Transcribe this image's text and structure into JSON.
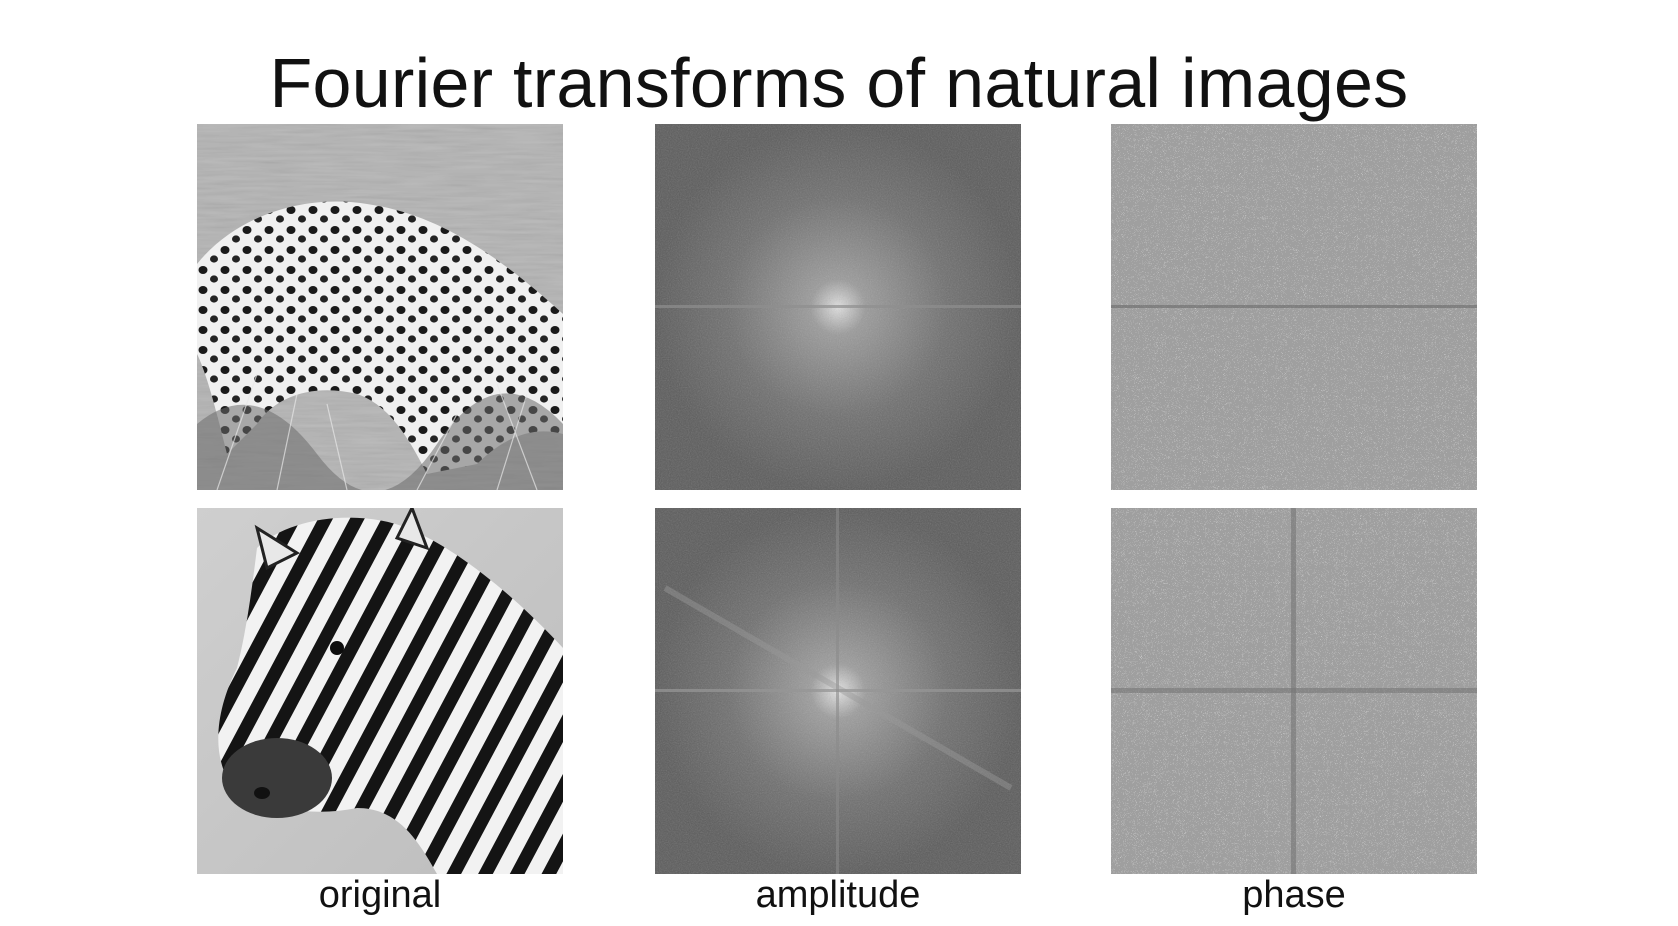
{
  "slide": {
    "title": "Fourier transforms of natural images",
    "columns": [
      {
        "label": "original"
      },
      {
        "label": "amplitude"
      },
      {
        "label": "phase"
      }
    ],
    "rows": [
      {
        "subject": "cheetah"
      },
      {
        "subject": "zebra"
      }
    ]
  }
}
